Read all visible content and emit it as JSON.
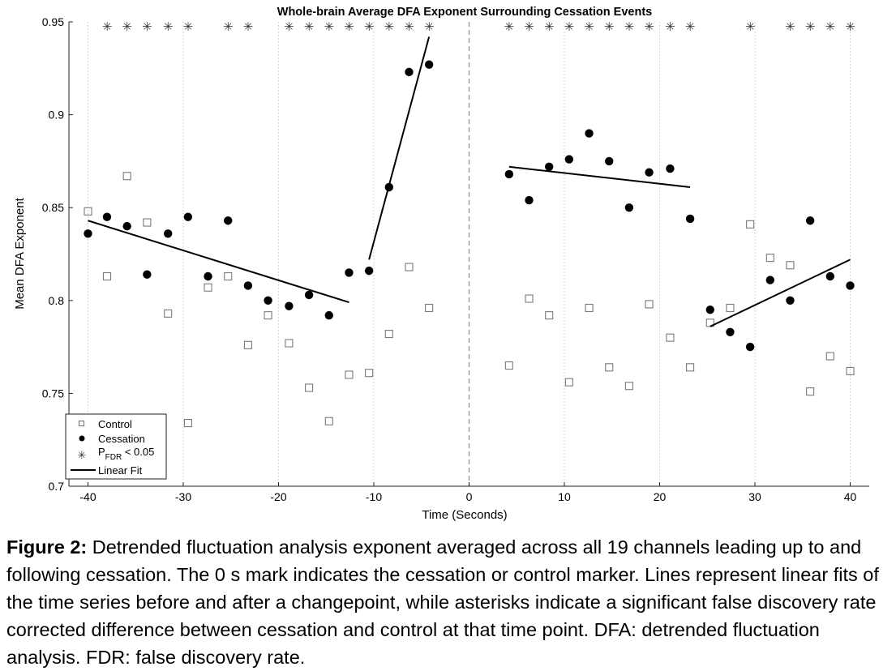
{
  "chart_data": {
    "type": "scatter",
    "title": "Whole-brain Average DFA Exponent Surrounding Cessation Events",
    "xlabel": "Time (Seconds)",
    "ylabel": "Mean DFA Exponent",
    "xlim": [
      -42,
      42
    ],
    "ylim": [
      0.7,
      0.95
    ],
    "xticks": [
      -40,
      -30,
      -20,
      -10,
      0,
      10,
      20,
      30,
      40
    ],
    "xtick_labels": [
      "-40",
      "-30",
      "-20",
      "-10",
      "0",
      "10",
      "20",
      "30",
      "40"
    ],
    "yticks": [
      0.7,
      0.75,
      0.8,
      0.85,
      0.9,
      0.95
    ],
    "ytick_labels": [
      "0.7",
      "0.75",
      "0.8",
      "0.85",
      "0.9",
      "0.95"
    ],
    "vertical_gridlines": [
      -40,
      -30,
      -20,
      -10,
      10,
      20,
      30,
      40
    ],
    "marker_line_x": 0,
    "legend": {
      "placement": "bottom-left",
      "entries": {
        "control": "Control",
        "cessation": "Cessation",
        "sig_prefix": "P",
        "sig_sub": "FDR",
        "sig_suffix": " < 0.05",
        "fit": "Linear Fit"
      }
    },
    "series": [
      {
        "name": "Control",
        "marker": "open-square",
        "x": [
          -40,
          -38,
          -35.9,
          -33.8,
          -31.6,
          -29.5,
          -27.4,
          -25.3,
          -23.2,
          -21.1,
          -18.9,
          -16.8,
          -14.7,
          -12.6,
          -10.5,
          -8.4,
          -6.3,
          -4.2,
          4.2,
          6.3,
          8.4,
          10.5,
          12.6,
          14.7,
          16.8,
          18.9,
          21.1,
          23.2,
          25.3,
          27.4,
          29.5,
          31.6,
          33.7,
          35.8,
          37.9,
          40
        ],
        "y": [
          0.848,
          0.813,
          0.867,
          0.842,
          0.793,
          0.734,
          0.807,
          0.813,
          0.776,
          0.792,
          0.777,
          0.753,
          0.735,
          0.76,
          0.761,
          0.782,
          0.818,
          0.796,
          0.765,
          0.801,
          0.792,
          0.756,
          0.796,
          0.764,
          0.754,
          0.798,
          0.78,
          0.764,
          0.788,
          0.796,
          0.841,
          0.823,
          0.819,
          0.751,
          0.77,
          0.762
        ]
      },
      {
        "name": "Cessation",
        "marker": "filled-circle",
        "x": [
          -40,
          -38,
          -35.9,
          -33.8,
          -31.6,
          -29.5,
          -27.4,
          -25.3,
          -23.2,
          -21.1,
          -18.9,
          -16.8,
          -14.7,
          -12.6,
          -10.5,
          -8.4,
          -6.3,
          -4.2,
          4.2,
          6.3,
          8.4,
          10.5,
          12.6,
          14.7,
          16.8,
          18.9,
          21.1,
          23.2,
          25.3,
          27.4,
          29.5,
          31.6,
          33.7,
          35.8,
          37.9,
          40
        ],
        "y": [
          0.836,
          0.845,
          0.84,
          0.814,
          0.836,
          0.845,
          0.813,
          0.843,
          0.808,
          0.8,
          0.797,
          0.803,
          0.792,
          0.815,
          0.816,
          0.861,
          0.923,
          0.927,
          0.868,
          0.854,
          0.872,
          0.876,
          0.89,
          0.875,
          0.85,
          0.869,
          0.871,
          0.844,
          0.795,
          0.783,
          0.775,
          0.811,
          0.8,
          0.843,
          0.813,
          0.808
        ]
      }
    ],
    "linear_fits": [
      {
        "x": [
          -40,
          -12.6
        ],
        "y": [
          0.843,
          0.799
        ]
      },
      {
        "x": [
          -10.5,
          -4.2
        ],
        "y": [
          0.822,
          0.942
        ]
      },
      {
        "x": [
          4.2,
          23.2
        ],
        "y": [
          0.872,
          0.861
        ]
      },
      {
        "x": [
          25.3,
          40
        ],
        "y": [
          0.786,
          0.822
        ]
      }
    ],
    "significance_x": [
      -38,
      -35.9,
      -33.8,
      -31.6,
      -29.5,
      -25.3,
      -23.2,
      -18.9,
      -16.8,
      -14.7,
      -12.6,
      -10.5,
      -8.4,
      -6.3,
      -4.2,
      4.2,
      6.3,
      8.4,
      10.5,
      12.6,
      14.7,
      16.8,
      18.9,
      21.1,
      23.2,
      29.5,
      33.7,
      35.8,
      37.9,
      40
    ],
    "significance_symbol": "✳"
  },
  "caption": {
    "label": "Figure 2:",
    "text": " Detrended fluctuation analysis exponent averaged across all 19 channels leading up to and following cessation. The 0 s mark indicates the cessation or control marker. Lines represent linear fits of the time series before and after a changepoint, while asterisks indicate a significant false discovery rate corrected difference between cessation and control at that time point. DFA: detrended fluctuation analysis. FDR: false discovery rate."
  }
}
